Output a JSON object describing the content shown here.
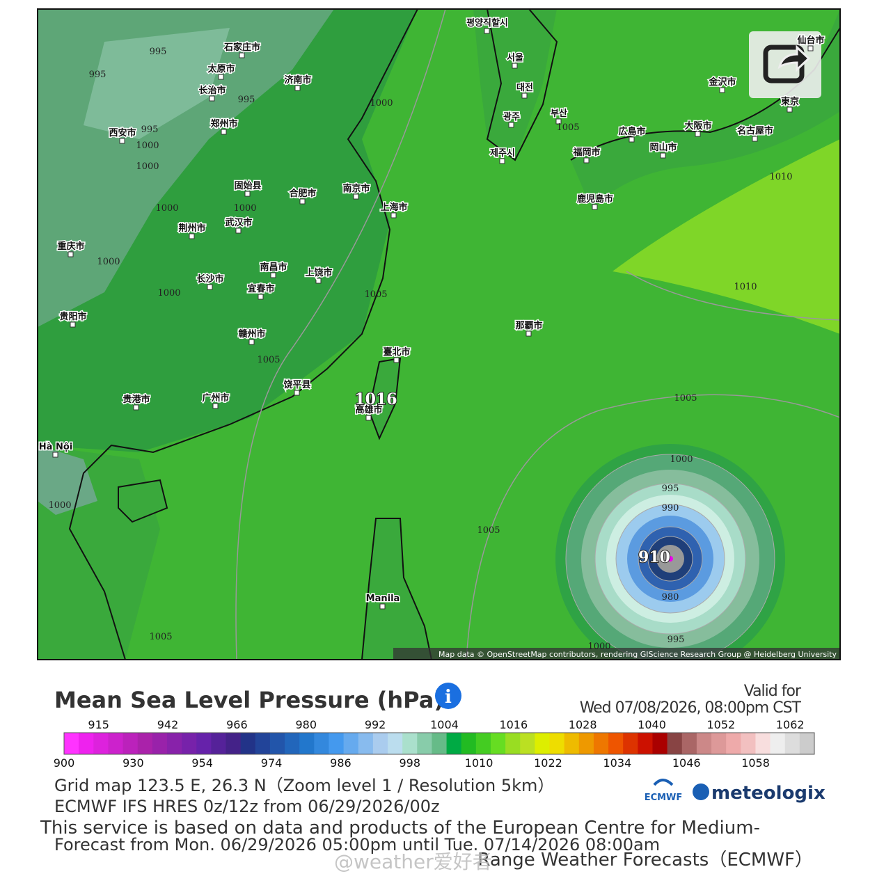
{
  "map": {
    "labels": [
      "평양직할시",
      "서울",
      "대전",
      "광주",
      "부산",
      "제주시",
      "石家庄市",
      "太原市",
      "济南市",
      "长治市",
      "郑州市",
      "西安市",
      "固始县",
      "合肥市",
      "南京市",
      "上海市",
      "荆州市",
      "武汉市",
      "重庆市",
      "南昌市",
      "长沙市",
      "宜春市",
      "上饶市",
      "贵阳市",
      "赣州市",
      "臺北市",
      "饶平县",
      "贵港市",
      "广州市",
      "高雄市",
      "Hà Nội",
      "Manila",
      "那覇市",
      "金沢市",
      "東京",
      "広島市",
      "大阪市",
      "名古屋市",
      "福岡市",
      "岡山市",
      "鹿児島市",
      "仙台市"
    ],
    "isobars": [
      995,
      995,
      995,
      995,
      1000,
      1000,
      1000,
      1000,
      1000,
      1000,
      1000,
      1005,
      1005,
      1005,
      1010,
      1010,
      1005,
      1016,
      1000,
      995,
      990,
      910,
      980,
      995,
      1000,
      1005,
      1000,
      1005
    ],
    "attribution": "Map data © OpenStreetMap contributors, rendering GIScience Research Group @ Heidelberg University"
  },
  "title": "Mean Sea Level Pressure (hPa)",
  "valid": {
    "label": "Valid for",
    "time": "Wed 07/08/2026, 08:00pm CST"
  },
  "legend": {
    "top_ticks": [
      915,
      942,
      966,
      980,
      992,
      1004,
      1016,
      1028,
      1040,
      1052,
      1062
    ],
    "bottom_ticks": [
      900,
      930,
      954,
      974,
      986,
      998,
      1010,
      1022,
      1034,
      1046,
      1058
    ],
    "colors": [
      "#ff33ff",
      "#ee22ee",
      "#dd22dd",
      "#cc22cc",
      "#bb22bb",
      "#aa22aa",
      "#9922aa",
      "#8822aa",
      "#7722aa",
      "#6622aa",
      "#552299",
      "#442288",
      "#223388",
      "#224499",
      "#2255aa",
      "#2266bb",
      "#2277cc",
      "#3388dd",
      "#4499ee",
      "#66aaee",
      "#88bbee",
      "#aaccee",
      "#bbddee",
      "#aae0cc",
      "#88ccaa",
      "#66bb88",
      "#00aa44",
      "#22bb22",
      "#44cc22",
      "#66dd22",
      "#99dd22",
      "#bbe022",
      "#ddee00",
      "#eedd00",
      "#eebb00",
      "#ee9900",
      "#ee7700",
      "#ee5500",
      "#dd3300",
      "#cc1100",
      "#aa0000",
      "#884444",
      "#aa6666",
      "#cc8888",
      "#dd9999",
      "#eeaaaa",
      "#f2c0c0",
      "#f8dede",
      "#eeeeee",
      "#dddddd",
      "#cccccc"
    ]
  },
  "info": [
    "Grid map 123.5 E, 26.3 N（Zoom level 1 / Resolution 5km）",
    "ECMWF IFS HRES 0z/12z from 06/29/2026/00z",
    "This service is based on data and products of the European Centre for Medium-",
    "Forecast from Mon. 06/29/2026 05:00pm until Tue. 07/14/2026 08:00am",
    "Range Weather Forecasts（ECMWF）"
  ],
  "logos": [
    "ECMWF",
    "meteologix"
  ],
  "watermark": "@weather爱好者"
}
